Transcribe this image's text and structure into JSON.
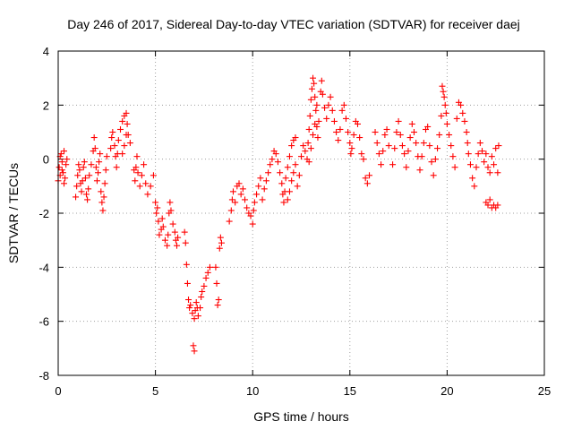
{
  "chart_data": {
    "type": "scatter",
    "title": "Day 246 of 2017, Sidereal Day-to-day VTEC variation (SDTVAR) for receiver daej",
    "xlabel": "GPS time / hours",
    "ylabel": "SDTVAR / TECUs",
    "xlim": [
      0,
      25
    ],
    "ylim": [
      -8,
      4
    ],
    "xticks": [
      0,
      5,
      10,
      15,
      20,
      25
    ],
    "yticks": [
      -8,
      -6,
      -4,
      -2,
      0,
      2,
      4
    ],
    "grid": true,
    "marker": "plus",
    "color": "#ff0000",
    "series": [
      {
        "name": "SDTVAR",
        "points": [
          [
            0.0,
            -0.8
          ],
          [
            0.05,
            -0.3
          ],
          [
            0.1,
            0.1
          ],
          [
            0.15,
            0.2
          ],
          [
            0.2,
            -0.1
          ],
          [
            0.25,
            -0.5
          ],
          [
            0.3,
            -0.9
          ],
          [
            0.35,
            -0.7
          ],
          [
            0.4,
            -0.2
          ],
          [
            0.45,
            0.0
          ],
          [
            0.1,
            -0.6
          ],
          [
            0.2,
            -0.4
          ],
          [
            0.3,
            0.3
          ],
          [
            0.9,
            -1.4
          ],
          [
            0.95,
            -1.0
          ],
          [
            1.0,
            -0.6
          ],
          [
            1.05,
            -0.2
          ],
          [
            1.1,
            -0.4
          ],
          [
            1.15,
            -0.9
          ],
          [
            1.2,
            -1.2
          ],
          [
            1.25,
            -0.8
          ],
          [
            1.3,
            -0.3
          ],
          [
            1.35,
            -0.1
          ],
          [
            1.4,
            -0.7
          ],
          [
            1.45,
            -1.3
          ],
          [
            1.5,
            -1.5
          ],
          [
            1.55,
            -1.1
          ],
          [
            1.6,
            -0.6
          ],
          [
            1.7,
            -0.2
          ],
          [
            1.8,
            0.3
          ],
          [
            1.85,
            0.8
          ],
          [
            1.9,
            0.4
          ],
          [
            1.95,
            -0.3
          ],
          [
            2.0,
            -0.8
          ],
          [
            2.05,
            -0.5
          ],
          [
            2.1,
            -0.1
          ],
          [
            2.15,
            0.2
          ],
          [
            2.2,
            -1.2
          ],
          [
            2.25,
            -1.6
          ],
          [
            2.3,
            -1.9
          ],
          [
            2.35,
            -1.4
          ],
          [
            2.4,
            -0.9
          ],
          [
            2.45,
            -0.4
          ],
          [
            2.5,
            0.1
          ],
          [
            2.7,
            0.4
          ],
          [
            2.75,
            0.8
          ],
          [
            2.8,
            1.0
          ],
          [
            2.9,
            0.5
          ],
          [
            2.95,
            0.1
          ],
          [
            3.0,
            -0.3
          ],
          [
            3.05,
            0.2
          ],
          [
            3.1,
            0.7
          ],
          [
            3.2,
            1.1
          ],
          [
            3.3,
            1.4
          ],
          [
            3.4,
            1.6
          ],
          [
            3.5,
            1.7
          ],
          [
            3.55,
            1.3
          ],
          [
            3.6,
            0.9
          ],
          [
            3.7,
            0.6
          ],
          [
            3.3,
            0.2
          ],
          [
            3.4,
            0.5
          ],
          [
            3.5,
            0.9
          ],
          [
            3.9,
            -0.4
          ],
          [
            3.95,
            -0.8
          ],
          [
            4.0,
            -0.3
          ],
          [
            4.05,
            0.1
          ],
          [
            4.1,
            -0.5
          ],
          [
            4.2,
            -1.0
          ],
          [
            4.3,
            -0.6
          ],
          [
            4.4,
            -0.2
          ],
          [
            4.5,
            -0.9
          ],
          [
            4.6,
            -1.3
          ],
          [
            4.75,
            -1.0
          ],
          [
            4.9,
            -0.6
          ],
          [
            5.0,
            -1.6
          ],
          [
            5.05,
            -2.0
          ],
          [
            5.1,
            -1.8
          ],
          [
            5.15,
            -2.3
          ],
          [
            5.2,
            -2.8
          ],
          [
            5.3,
            -2.6
          ],
          [
            5.35,
            -2.2
          ],
          [
            5.4,
            -2.5
          ],
          [
            5.5,
            -3.0
          ],
          [
            5.6,
            -3.2
          ],
          [
            5.65,
            -2.8
          ],
          [
            5.7,
            -2.0
          ],
          [
            5.75,
            -1.6
          ],
          [
            5.8,
            -1.9
          ],
          [
            5.9,
            -2.4
          ],
          [
            6.0,
            -2.7
          ],
          [
            6.05,
            -3.0
          ],
          [
            6.1,
            -3.2
          ],
          [
            6.15,
            -2.9
          ],
          [
            6.5,
            -2.7
          ],
          [
            6.55,
            -3.1
          ],
          [
            6.6,
            -3.9
          ],
          [
            6.65,
            -4.6
          ],
          [
            6.7,
            -5.2
          ],
          [
            6.75,
            -5.5
          ],
          [
            6.8,
            -5.4
          ],
          [
            6.9,
            -5.7
          ],
          [
            7.0,
            -5.9
          ],
          [
            7.05,
            -5.6
          ],
          [
            7.1,
            -5.3
          ],
          [
            7.15,
            -5.5
          ],
          [
            7.2,
            -5.8
          ],
          [
            7.3,
            -5.5
          ],
          [
            7.35,
            -5.1
          ],
          [
            7.4,
            -4.9
          ],
          [
            7.5,
            -4.7
          ],
          [
            7.6,
            -4.4
          ],
          [
            7.7,
            -4.2
          ],
          [
            7.8,
            -4.0
          ],
          [
            6.95,
            -6.9
          ],
          [
            7.0,
            -7.1
          ],
          [
            8.1,
            -4.0
          ],
          [
            8.15,
            -4.6
          ],
          [
            8.2,
            -5.4
          ],
          [
            8.25,
            -5.2
          ],
          [
            8.3,
            -3.3
          ],
          [
            8.35,
            -2.9
          ],
          [
            8.4,
            -3.1
          ],
          [
            8.8,
            -2.3
          ],
          [
            8.9,
            -1.9
          ],
          [
            8.95,
            -1.5
          ],
          [
            9.0,
            -1.2
          ],
          [
            9.1,
            -1.6
          ],
          [
            9.2,
            -1.0
          ],
          [
            9.3,
            -0.9
          ],
          [
            9.4,
            -1.3
          ],
          [
            9.5,
            -1.1
          ],
          [
            9.6,
            -1.5
          ],
          [
            9.7,
            -1.8
          ],
          [
            9.8,
            -2.0
          ],
          [
            9.9,
            -2.1
          ],
          [
            10.0,
            -2.4
          ],
          [
            10.05,
            -1.9
          ],
          [
            10.1,
            -1.6
          ],
          [
            10.2,
            -1.3
          ],
          [
            10.3,
            -1.0
          ],
          [
            10.4,
            -0.7
          ],
          [
            10.5,
            -1.5
          ],
          [
            10.6,
            -1.1
          ],
          [
            10.7,
            -0.8
          ],
          [
            10.8,
            -0.5
          ],
          [
            10.9,
            -0.2
          ],
          [
            11.0,
            0.0
          ],
          [
            11.1,
            0.3
          ],
          [
            11.2,
            0.2
          ],
          [
            11.3,
            -0.1
          ],
          [
            11.4,
            -0.5
          ],
          [
            11.5,
            -0.9
          ],
          [
            11.55,
            -1.3
          ],
          [
            11.6,
            -1.6
          ],
          [
            11.65,
            -1.2
          ],
          [
            11.7,
            -0.7
          ],
          [
            11.8,
            -0.3
          ],
          [
            11.9,
            0.1
          ],
          [
            12.0,
            0.5
          ],
          [
            12.1,
            0.7
          ],
          [
            12.2,
            0.8
          ],
          [
            11.8,
            -1.5
          ],
          [
            11.9,
            -1.2
          ],
          [
            12.0,
            -0.8
          ],
          [
            12.1,
            -0.5
          ],
          [
            12.2,
            -0.2
          ],
          [
            12.3,
            -1.0
          ],
          [
            12.4,
            -0.6
          ],
          [
            12.5,
            0.1
          ],
          [
            12.6,
            0.5
          ],
          [
            12.7,
            0.3
          ],
          [
            12.8,
            0.0
          ],
          [
            12.85,
            0.6
          ],
          [
            12.9,
            1.1
          ],
          [
            12.95,
            1.6
          ],
          [
            13.0,
            2.2
          ],
          [
            13.05,
            2.6
          ],
          [
            13.1,
            3.0
          ],
          [
            13.15,
            2.8
          ],
          [
            13.2,
            2.3
          ],
          [
            13.25,
            1.8
          ],
          [
            13.3,
            1.2
          ],
          [
            13.35,
            0.8
          ],
          [
            13.4,
            1.4
          ],
          [
            12.9,
            -0.1
          ],
          [
            13.0,
            0.4
          ],
          [
            13.1,
            0.9
          ],
          [
            13.2,
            1.3
          ],
          [
            13.3,
            2.0
          ],
          [
            13.5,
            2.5
          ],
          [
            13.55,
            2.9
          ],
          [
            13.6,
            2.4
          ],
          [
            13.7,
            1.9
          ],
          [
            13.8,
            1.5
          ],
          [
            13.9,
            2.0
          ],
          [
            14.0,
            2.3
          ],
          [
            14.1,
            1.8
          ],
          [
            14.2,
            1.4
          ],
          [
            14.3,
            1.0
          ],
          [
            14.4,
            0.7
          ],
          [
            14.5,
            1.1
          ],
          [
            14.6,
            1.8
          ],
          [
            14.7,
            2.0
          ],
          [
            14.8,
            1.5
          ],
          [
            14.9,
            1.0
          ],
          [
            15.0,
            0.6
          ],
          [
            15.05,
            0.2
          ],
          [
            15.1,
            0.4
          ],
          [
            15.2,
            0.9
          ],
          [
            15.3,
            1.4
          ],
          [
            15.4,
            1.3
          ],
          [
            15.5,
            0.8
          ],
          [
            15.6,
            0.2
          ],
          [
            15.7,
            0.0
          ],
          [
            15.8,
            -0.7
          ],
          [
            15.9,
            -0.9
          ],
          [
            16.0,
            -0.6
          ],
          [
            16.3,
            1.0
          ],
          [
            16.4,
            0.6
          ],
          [
            16.5,
            0.2
          ],
          [
            16.6,
            -0.2
          ],
          [
            16.7,
            0.3
          ],
          [
            16.8,
            0.9
          ],
          [
            16.9,
            1.1
          ],
          [
            17.0,
            0.5
          ],
          [
            17.2,
            -0.2
          ],
          [
            17.3,
            0.4
          ],
          [
            17.4,
            1.0
          ],
          [
            17.5,
            1.4
          ],
          [
            17.6,
            0.9
          ],
          [
            17.7,
            0.5
          ],
          [
            17.8,
            0.2
          ],
          [
            17.9,
            -0.3
          ],
          [
            18.0,
            0.3
          ],
          [
            18.1,
            0.8
          ],
          [
            18.2,
            1.3
          ],
          [
            18.3,
            1.0
          ],
          [
            18.4,
            0.6
          ],
          [
            18.5,
            0.1
          ],
          [
            18.6,
            -0.4
          ],
          [
            18.7,
            0.1
          ],
          [
            18.8,
            0.6
          ],
          [
            18.9,
            1.1
          ],
          [
            19.0,
            1.2
          ],
          [
            19.1,
            0.5
          ],
          [
            19.2,
            -0.1
          ],
          [
            19.3,
            -0.6
          ],
          [
            19.4,
            0.0
          ],
          [
            19.5,
            0.4
          ],
          [
            19.6,
            0.9
          ],
          [
            19.7,
            1.6
          ],
          [
            19.75,
            2.7
          ],
          [
            19.8,
            2.5
          ],
          [
            19.85,
            2.3
          ],
          [
            19.9,
            2.0
          ],
          [
            19.95,
            1.7
          ],
          [
            20.0,
            1.3
          ],
          [
            20.1,
            0.9
          ],
          [
            20.2,
            0.5
          ],
          [
            20.3,
            0.1
          ],
          [
            20.4,
            -0.3
          ],
          [
            20.5,
            1.5
          ],
          [
            20.6,
            2.1
          ],
          [
            20.7,
            2.0
          ],
          [
            20.8,
            1.7
          ],
          [
            20.9,
            1.4
          ],
          [
            21.0,
            1.0
          ],
          [
            21.05,
            0.6
          ],
          [
            21.1,
            0.2
          ],
          [
            21.2,
            -0.2
          ],
          [
            21.3,
            -0.7
          ],
          [
            21.4,
            -1.0
          ],
          [
            21.5,
            -0.3
          ],
          [
            21.6,
            0.2
          ],
          [
            21.7,
            0.6
          ],
          [
            21.8,
            0.3
          ],
          [
            21.9,
            -0.1
          ],
          [
            22.0,
            -1.6
          ],
          [
            22.1,
            -1.7
          ],
          [
            22.2,
            -1.5
          ],
          [
            22.3,
            -1.8
          ],
          [
            22.4,
            -1.7
          ],
          [
            22.5,
            -1.8
          ],
          [
            22.6,
            -1.7
          ],
          [
            22.0,
            0.2
          ],
          [
            22.1,
            -0.3
          ],
          [
            22.2,
            -0.5
          ],
          [
            22.3,
            0.1
          ],
          [
            22.4,
            -0.2
          ],
          [
            22.5,
            0.4
          ],
          [
            22.6,
            -0.5
          ],
          [
            22.65,
            0.5
          ]
        ]
      }
    ]
  }
}
